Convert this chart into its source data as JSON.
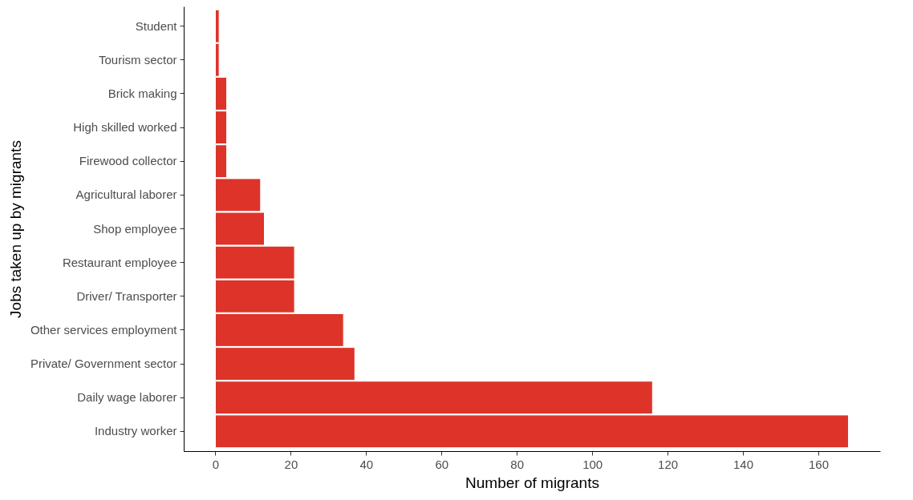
{
  "chart_data": {
    "type": "bar",
    "orientation": "horizontal",
    "xlabel": "Number of migrants",
    "ylabel": "Jobs taken up by migrants",
    "categories": [
      "Student",
      "Tourism sector",
      "Brick making",
      "High skilled worked",
      "Firewood collector",
      "Agricultural laborer",
      "Shop employee",
      "Restaurant employee",
      "Driver/ Transporter",
      "Other services employment",
      "Private/ Government sector",
      "Daily wage laborer",
      "Industry worker"
    ],
    "values": [
      1,
      1,
      3,
      3,
      3,
      12,
      13,
      21,
      21,
      34,
      37,
      116,
      168
    ],
    "color": "#dd3329",
    "xlim": [
      -8.4,
      176.4
    ],
    "xticks": [
      0,
      20,
      40,
      60,
      80,
      100,
      120,
      140,
      160
    ],
    "grid": false
  }
}
